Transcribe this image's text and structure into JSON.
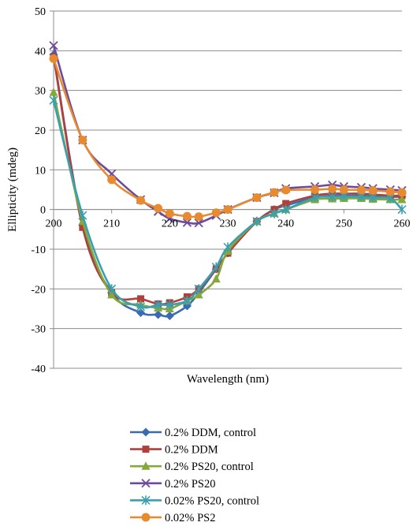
{
  "chart_data": {
    "type": "line",
    "title": "",
    "xlabel": "Wavelength (nm)",
    "ylabel": "Ellipticity (mdeg)",
    "xlim": [
      200,
      260
    ],
    "ylim": [
      -40,
      50
    ],
    "x_ticks": [
      200,
      210,
      220,
      230,
      240,
      250,
      260
    ],
    "y_ticks": [
      -40,
      -30,
      -20,
      -10,
      0,
      10,
      20,
      30,
      40,
      50
    ],
    "grid": "horizontal",
    "legend_position": "bottom",
    "series": [
      {
        "name": "0.2% DDM, control",
        "color": "#3a6ab0",
        "marker": "diamond",
        "points": [
          [
            200,
            39
          ],
          [
            205,
            -4
          ],
          [
            210,
            -21
          ],
          [
            215,
            -26
          ],
          [
            218,
            -26.5
          ],
          [
            220,
            -26.8
          ],
          [
            223,
            -24.3
          ],
          [
            225,
            -21
          ],
          [
            228,
            -15
          ],
          [
            230,
            -11
          ],
          [
            235,
            -3
          ],
          [
            238,
            0
          ],
          [
            240,
            1
          ],
          [
            245,
            3
          ],
          [
            248,
            3.5
          ],
          [
            250,
            3.5
          ],
          [
            253,
            3.5
          ],
          [
            255,
            3.3
          ],
          [
            258,
            3.2
          ],
          [
            260,
            3.2
          ]
        ]
      },
      {
        "name": "0.2% DDM",
        "color": "#b0403c",
        "marker": "square",
        "points": [
          [
            200,
            38.5
          ],
          [
            205,
            -4.5
          ],
          [
            210,
            -21
          ],
          [
            215,
            -22.5
          ],
          [
            218,
            -23.8
          ],
          [
            220,
            -23.5
          ],
          [
            223,
            -22
          ],
          [
            225,
            -20
          ],
          [
            228,
            -15
          ],
          [
            230,
            -11
          ],
          [
            235,
            -3
          ],
          [
            238,
            0
          ],
          [
            240,
            1.5
          ],
          [
            245,
            3.5
          ],
          [
            248,
            4
          ],
          [
            250,
            4
          ],
          [
            253,
            4
          ],
          [
            255,
            3.8
          ],
          [
            258,
            3.5
          ],
          [
            260,
            3.5
          ]
        ]
      },
      {
        "name": "0.2% PS20, control",
        "color": "#84a83a",
        "marker": "triangle",
        "points": [
          [
            200,
            29.5
          ],
          [
            205,
            -3
          ],
          [
            210,
            -21.5
          ],
          [
            215,
            -24
          ],
          [
            218,
            -24.8
          ],
          [
            220,
            -25
          ],
          [
            223,
            -23
          ],
          [
            225,
            -21.5
          ],
          [
            228,
            -17.5
          ],
          [
            230,
            -10.5
          ],
          [
            235,
            -3
          ],
          [
            238,
            -1
          ],
          [
            240,
            0
          ],
          [
            245,
            2.5
          ],
          [
            248,
            2.7
          ],
          [
            250,
            2.8
          ],
          [
            253,
            2.8
          ],
          [
            255,
            2.6
          ],
          [
            258,
            2.5
          ],
          [
            260,
            2.5
          ]
        ]
      },
      {
        "name": "0.2% PS20",
        "color": "#6e4a9a",
        "marker": "x",
        "points": [
          [
            200,
            41.3
          ],
          [
            205,
            17.5
          ],
          [
            210,
            9
          ],
          [
            215,
            2.5
          ],
          [
            218,
            -0.5
          ],
          [
            220,
            -2.3
          ],
          [
            223,
            -3.3
          ],
          [
            225,
            -3.4
          ],
          [
            228,
            -1.5
          ],
          [
            230,
            0
          ],
          [
            235,
            3
          ],
          [
            238,
            4.2
          ],
          [
            240,
            5.3
          ],
          [
            245,
            5.8
          ],
          [
            248,
            6.2
          ],
          [
            250,
            5.8
          ],
          [
            253,
            5.6
          ],
          [
            255,
            5.3
          ],
          [
            258,
            5
          ],
          [
            260,
            4.8
          ]
        ]
      },
      {
        "name": "0.02% PS20, control",
        "color": "#3aa0b0",
        "marker": "star",
        "points": [
          [
            200,
            27.5
          ],
          [
            205,
            -1.5
          ],
          [
            210,
            -20
          ],
          [
            215,
            -24.5
          ],
          [
            218,
            -24
          ],
          [
            220,
            -24
          ],
          [
            223,
            -23
          ],
          [
            225,
            -20
          ],
          [
            228,
            -14.5
          ],
          [
            230,
            -9.5
          ],
          [
            235,
            -3
          ],
          [
            238,
            -1
          ],
          [
            240,
            0
          ],
          [
            245,
            3
          ],
          [
            248,
            3.2
          ],
          [
            250,
            3.3
          ],
          [
            253,
            3.2
          ],
          [
            255,
            3
          ],
          [
            258,
            2.8
          ],
          [
            260,
            0
          ]
        ]
      },
      {
        "name": "0.02% PS2",
        "color": "#e88a30",
        "marker": "circle",
        "points": [
          [
            200,
            38
          ],
          [
            205,
            17.5
          ],
          [
            210,
            7.5
          ],
          [
            215,
            2.3
          ],
          [
            218,
            0.3
          ],
          [
            220,
            -1
          ],
          [
            223,
            -1.7
          ],
          [
            225,
            -1.8
          ],
          [
            228,
            -0.8
          ],
          [
            230,
            0
          ],
          [
            235,
            3
          ],
          [
            238,
            4.3
          ],
          [
            240,
            4.9
          ],
          [
            245,
            5
          ],
          [
            248,
            5.2
          ],
          [
            250,
            5
          ],
          [
            253,
            4.9
          ],
          [
            255,
            4.8
          ],
          [
            258,
            4.5
          ],
          [
            260,
            4.3
          ]
        ]
      }
    ]
  }
}
